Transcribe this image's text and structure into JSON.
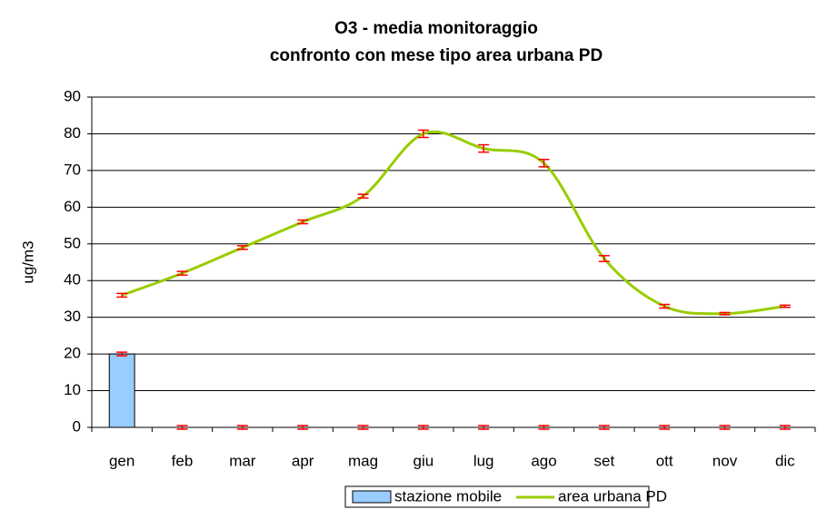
{
  "chart_data": {
    "type": "bar-line",
    "title": "O3 - media monitoraggio",
    "subtitle": "confronto con mese tipo area urbana PD",
    "y_label": "ug/m3",
    "categories": [
      "gen",
      "feb",
      "mar",
      "apr",
      "mag",
      "giu",
      "lug",
      "ago",
      "set",
      "ott",
      "nov",
      "dic"
    ],
    "series": [
      {
        "name": "stazione mobile",
        "type": "bar",
        "color": "#99ccff",
        "values": [
          20,
          0,
          0,
          0,
          0,
          0,
          0,
          0,
          0,
          0,
          0,
          0
        ],
        "errors": [
          0.5,
          0.5,
          0.5,
          0.5,
          0.5,
          0.5,
          0.5,
          0.5,
          0.5,
          0.5,
          0.5,
          0.5
        ]
      },
      {
        "name": "area urbana PD",
        "type": "line",
        "color": "#99cc00",
        "values": [
          36,
          42,
          49,
          56,
          63,
          80,
          76,
          72,
          46,
          33,
          31,
          33
        ],
        "errors": [
          0.5,
          0.5,
          0.5,
          0.5,
          0.5,
          1,
          1,
          1,
          0.8,
          0.5,
          0.3,
          0.3
        ]
      }
    ],
    "error_color": "#ff0000",
    "ylim": [
      0,
      90
    ],
    "yticks": [
      0,
      10,
      20,
      30,
      40,
      50,
      60,
      70,
      80,
      90
    ]
  }
}
